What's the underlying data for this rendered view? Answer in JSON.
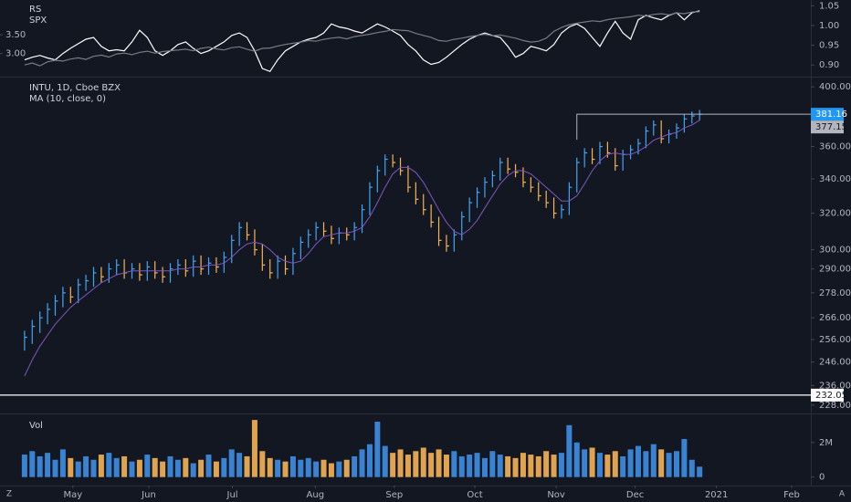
{
  "chart_data": [
    {
      "type": "line",
      "series": [
        {
          "name": "RS",
          "color": "#ffffff",
          "axis": "y",
          "values": [
            2.83,
            2.9,
            2.95,
            2.88,
            2.83,
            3.0,
            3.14,
            3.26,
            3.38,
            3.43,
            3.19,
            3.07,
            3.1,
            3.07,
            3.31,
            3.62,
            3.43,
            3.07,
            2.95,
            3.07,
            3.24,
            3.31,
            3.14,
            3.0,
            3.07,
            3.19,
            3.31,
            3.48,
            3.55,
            3.43,
            3.07,
            2.6,
            2.52,
            2.83,
            3.07,
            3.19,
            3.31,
            3.38,
            3.43,
            3.55,
            3.79,
            3.71,
            3.67,
            3.6,
            3.55,
            3.67,
            3.79,
            3.71,
            3.6,
            3.48,
            3.24,
            3.07,
            2.83,
            2.71,
            2.76,
            2.9,
            3.07,
            3.24,
            3.38,
            3.48,
            3.55,
            3.48,
            3.43,
            3.19,
            2.9,
            3.0,
            3.19,
            3.14,
            3.07,
            3.24,
            3.55,
            3.71,
            3.79,
            3.67,
            3.43,
            3.19,
            3.55,
            3.86,
            3.55,
            3.38,
            3.9,
            4.02,
            3.95,
            3.9,
            4.02,
            4.09,
            3.9,
            4.09,
            4.14
          ]
        },
        {
          "name": "SPX",
          "color": "#787b86",
          "axis": "y2",
          "values": [
            0.9,
            0.905,
            0.898,
            0.908,
            0.912,
            0.91,
            0.915,
            0.918,
            0.914,
            0.922,
            0.925,
            0.92,
            0.928,
            0.93,
            0.926,
            0.932,
            0.935,
            0.93,
            0.934,
            0.936,
            0.938,
            0.94,
            0.936,
            0.942,
            0.945,
            0.941,
            0.938,
            0.944,
            0.946,
            0.94,
            0.935,
            0.942,
            0.943,
            0.948,
            0.952,
            0.955,
            0.958,
            0.962,
            0.96,
            0.965,
            0.968,
            0.97,
            0.966,
            0.972,
            0.975,
            0.978,
            0.982,
            0.985,
            0.99,
            0.988,
            0.987,
            0.98,
            0.975,
            0.97,
            0.962,
            0.96,
            0.965,
            0.968,
            0.972,
            0.975,
            0.978,
            0.974,
            0.976,
            0.972,
            0.968,
            0.962,
            0.958,
            0.96,
            0.968,
            0.985,
            0.995,
            1.002,
            1.006,
            1.009,
            1.012,
            1.01,
            1.015,
            1.018,
            1.02,
            1.022,
            1.026,
            1.024,
            1.028,
            1.03,
            1.027,
            1.032,
            1.03,
            1.034,
            1.035
          ]
        }
      ],
      "ylim": [
        2.43,
        4.38
      ],
      "yticks": [
        {
          "value": 3.5,
          "label": "3.50"
        },
        {
          "value": 3,
          "label": "3.00"
        }
      ],
      "y2lim": [
        0.875,
        1.06
      ],
      "y2ticks": [
        1.05,
        {
          "value": 1,
          "label": "1.00"
        },
        0.95,
        {
          "value": 0.9,
          "label": "0.90"
        }
      ]
    },
    {
      "type": "ohlc",
      "title": "INTU, 1D, Cboe BZX",
      "up_color": "#42a5f5",
      "down_color": "#f7b354",
      "high": [
        260,
        265,
        269,
        273,
        277,
        281,
        281,
        285,
        287,
        291,
        291,
        293,
        295,
        295,
        293,
        293,
        294,
        294,
        291,
        293,
        295,
        295,
        297,
        297,
        296,
        296,
        299,
        308,
        315,
        315,
        311,
        303,
        295,
        297,
        297,
        301,
        307,
        311,
        315,
        315,
        313,
        312,
        312,
        315,
        325,
        338,
        348,
        355,
        355,
        353,
        348,
        338,
        331,
        325,
        318,
        308,
        311,
        321,
        329,
        335,
        341,
        345,
        353,
        353,
        349,
        347,
        341,
        338,
        333,
        329,
        325,
        338,
        353,
        359,
        359,
        363,
        363,
        359,
        358,
        361,
        365,
        373,
        377,
        377,
        371,
        375,
        381,
        383,
        384
      ],
      "low": [
        251,
        254,
        259,
        263,
        267,
        271,
        273,
        273,
        279,
        281,
        283,
        283,
        287,
        285,
        285,
        284,
        284,
        285,
        283,
        283,
        287,
        286,
        286,
        287,
        287,
        288,
        288,
        293,
        302,
        305,
        297,
        289,
        285,
        285,
        287,
        287,
        295,
        301,
        305,
        307,
        303,
        303,
        305,
        305,
        309,
        319,
        332,
        342,
        347,
        342,
        332,
        325,
        319,
        312,
        302,
        299,
        299,
        305,
        315,
        323,
        329,
        335,
        339,
        343,
        341,
        335,
        332,
        327,
        323,
        317,
        317,
        319,
        332,
        347,
        349,
        349,
        353,
        345,
        345,
        352,
        355,
        359,
        367,
        362,
        362,
        365,
        369,
        375,
        377
      ],
      "close": [
        257,
        262,
        266,
        270,
        274,
        278,
        276,
        282,
        284,
        288,
        286,
        290,
        292,
        288,
        290,
        287,
        291,
        288,
        286,
        290,
        292,
        289,
        294,
        290,
        293,
        291,
        296,
        305,
        312,
        308,
        300,
        292,
        288,
        294,
        290,
        298,
        304,
        308,
        312,
        310,
        306,
        309,
        308,
        312,
        322,
        335,
        345,
        352,
        350,
        345,
        335,
        328,
        322,
        315,
        305,
        302,
        308,
        318,
        326,
        332,
        338,
        342,
        350,
        346,
        344,
        338,
        335,
        330,
        326,
        320,
        322,
        335,
        350,
        356,
        352,
        360,
        356,
        348,
        355,
        358,
        362,
        370,
        374,
        365,
        368,
        372,
        378,
        380,
        381.16
      ],
      "series": [
        {
          "name": "MA (10, close, 0)",
          "color": "#7e57c2",
          "values": [
            240,
            247,
            253,
            258,
            263,
            267,
            271,
            274,
            277,
            280,
            283,
            285,
            287,
            288,
            289,
            289,
            289,
            289,
            289,
            289,
            290,
            290,
            291,
            291,
            292,
            292,
            293,
            296,
            300,
            303,
            304,
            303,
            300,
            296,
            294,
            293,
            294,
            298,
            303,
            307,
            308,
            309,
            309,
            310,
            312,
            318,
            326,
            335,
            343,
            347,
            347,
            344,
            338,
            330,
            322,
            315,
            310,
            308,
            311,
            316,
            323,
            330,
            337,
            342,
            345,
            345,
            343,
            339,
            335,
            331,
            327,
            327,
            330,
            337,
            345,
            351,
            355,
            356,
            355,
            355,
            357,
            360,
            364,
            366,
            368,
            369,
            372,
            374,
            377.15
          ]
        }
      ],
      "price_line": 232.05,
      "log_scale": true,
      "ylim": [
        225,
        406
      ],
      "yticks": [
        {
          "value": 400,
          "label": "400.00"
        },
        {
          "value": 360,
          "label": "360.00"
        },
        {
          "value": 340,
          "label": "340.00"
        },
        {
          "value": 320,
          "label": "320.00"
        },
        {
          "value": 300,
          "label": "300.00"
        },
        {
          "value": 290,
          "label": "290.00"
        },
        {
          "value": 278,
          "label": "278.00"
        },
        {
          "value": 266,
          "label": "266.00"
        },
        {
          "value": 256,
          "label": "256.00"
        },
        {
          "value": 246,
          "label": "246.00"
        },
        {
          "value": 236,
          "label": "236.00"
        },
        {
          "value": 228,
          "label": "228.00"
        }
      ]
    },
    {
      "type": "bar",
      "title": "Vol",
      "values": [
        1300000,
        1500000,
        1200000,
        1400000,
        1000000,
        1600000,
        1100000,
        900000,
        1200000,
        1000000,
        1300000,
        1400000,
        1100000,
        1200000,
        900000,
        1000000,
        1300000,
        1100000,
        900000,
        1200000,
        1000000,
        1100000,
        800000,
        1000000,
        1300000,
        900000,
        1100000,
        1600000,
        1400000,
        1200000,
        3300000,
        1500000,
        1100000,
        1000000,
        900000,
        1200000,
        1000000,
        1100000,
        900000,
        1000000,
        800000,
        900000,
        1000000,
        1200000,
        1600000,
        1900000,
        3200000,
        1800000,
        1400000,
        1600000,
        1300000,
        1500000,
        1700000,
        1400000,
        1600000,
        1300000,
        1500000,
        1200000,
        1300000,
        1400000,
        1100000,
        1500000,
        1300000,
        1200000,
        1100000,
        1400000,
        1300000,
        1200000,
        1500000,
        1300000,
        1400000,
        3000000,
        2000000,
        1600000,
        1700000,
        1400000,
        1300000,
        1500000,
        1200000,
        1600000,
        1800000,
        1500000,
        1900000,
        1600000,
        1400000,
        1500000,
        2200000,
        1000000,
        600000
      ],
      "ylim": [
        -490000,
        3570000
      ],
      "yticks": [
        {
          "value": 2000000,
          "label": "2M"
        },
        0
      ],
      "xlim": [
        -3.2,
        102.5
      ],
      "xticks": [
        {
          "value": 6.3,
          "label": "May"
        },
        {
          "value": 16.2,
          "label": "Jun"
        },
        {
          "value": 27.1,
          "label": "Jul"
        },
        {
          "value": 37.9,
          "label": "Aug"
        },
        {
          "value": 48.2,
          "label": "Sep"
        },
        {
          "value": 58.7,
          "label": "Oct"
        },
        {
          "value": 69.3,
          "label": "Nov"
        },
        {
          "value": 79.6,
          "label": "Dec"
        },
        {
          "value": 90.2,
          "label": "2021"
        },
        {
          "value": 100,
          "label": "Feb"
        }
      ]
    }
  ],
  "toolbar": {
    "left": "Z",
    "right": "A"
  }
}
